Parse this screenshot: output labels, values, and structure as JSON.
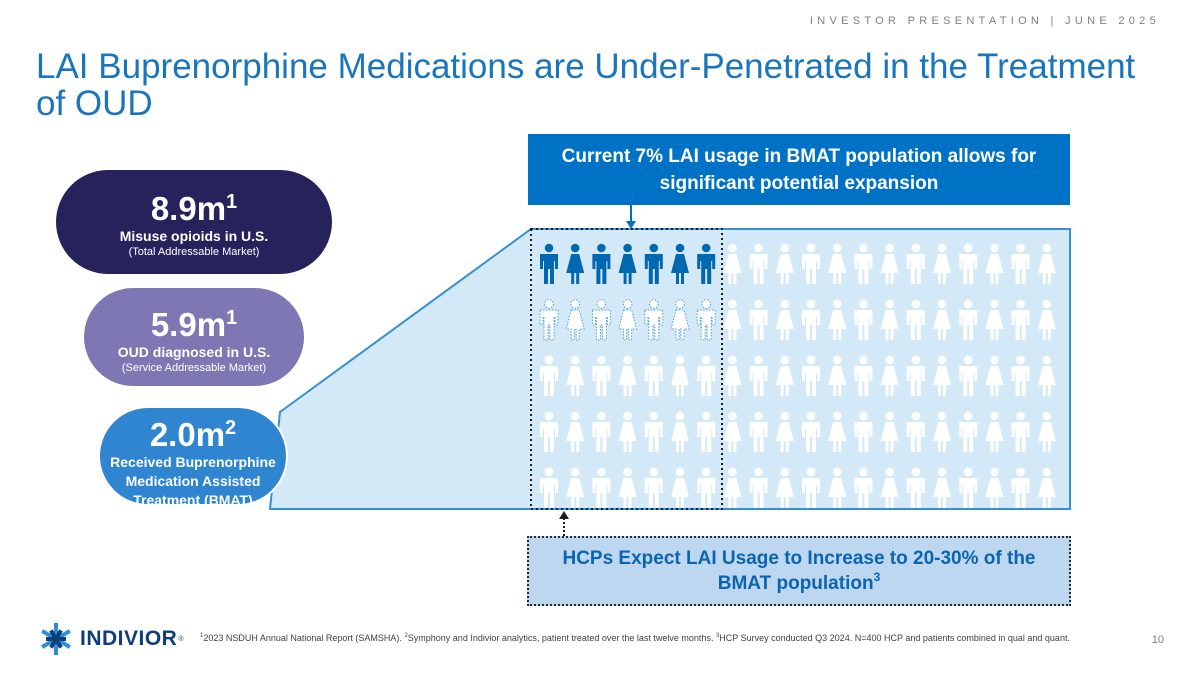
{
  "header": {
    "tag": "INVESTOR PRESENTATION | JUNE 2025"
  },
  "title": "LAI Buprenorphine Medications are Under-Penetrated in the Treatment of OUD",
  "pills": {
    "tam": {
      "value": "8.9m",
      "sup": "1",
      "label": "Misuse opioids in U.S.",
      "sub": "(Total Addressable Market)"
    },
    "sam": {
      "value": "5.9m",
      "sup": "1",
      "label": "OUD diagnosed in U.S.",
      "sub": "(Service Addressable Market)"
    },
    "bmat": {
      "value": "2.0m",
      "sup": "2",
      "label": "Received Buprenorphine Medication Assisted Treatment (BMAT)"
    }
  },
  "callouts": {
    "top": "Current 7% LAI usage in BMAT population allows for significant potential expansion",
    "bottom": "HCPs Expect LAI Usage to Increase to 20-30% of the BMAT population",
    "bottom_sup": "3"
  },
  "figure_grid": {
    "rows": 5,
    "columns": 20,
    "total_figures": 100,
    "lai_current_count": 7,
    "lai_expected_count": 30
  },
  "colors": {
    "title_blue": "#1a75bc",
    "tam": "#26235c",
    "sam": "#7d78b3",
    "bmat": "#2f85d0",
    "callout_top": "#0072c6",
    "callout_bottom": "#bdd7f1",
    "grid_bg": "#d4e9f8",
    "lai_figure": "#0068b0"
  },
  "footer": {
    "fn1_sup": "1",
    "fn1": "2023 NSDUH Annual National Report (SAMSHA). ",
    "fn2_sup": "2",
    "fn2": "Symphony and Indivior analytics, patient treated over the last twelve months. ",
    "fn3_sup": "3",
    "fn3": "HCP Survey conducted Q3 2024. N=400 HCP and patients combined in qual and quant.",
    "page_number": "10",
    "logo_text": "INDIVIOR",
    "logo_mark": "®"
  }
}
